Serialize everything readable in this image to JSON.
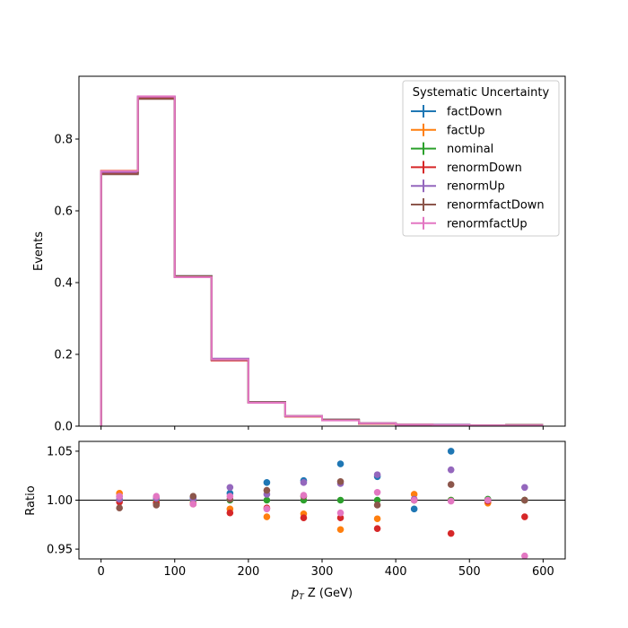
{
  "chart_data": [
    {
      "type": "step",
      "panel": "main",
      "ylabel": "Events",
      "xlim": [
        -30,
        630
      ],
      "ylim": [
        0,
        0.975
      ],
      "yticks": [
        0.0,
        0.2,
        0.4,
        0.6,
        0.8
      ],
      "ytick_labels": [
        "0.0",
        "0.2",
        "0.4",
        "0.6",
        "0.8"
      ],
      "xticks": [
        0,
        100,
        200,
        300,
        400,
        500,
        600
      ],
      "bin_edges": [
        0,
        50,
        100,
        150,
        200,
        250,
        300,
        350,
        400,
        450,
        500,
        550,
        600
      ],
      "legend": {
        "title": "Systematic Uncertainty",
        "placement": "top-right"
      },
      "series": [
        {
          "name": "factDown",
          "color": "#1f77b4",
          "values": [
            0.705,
            0.918,
            0.418,
            0.186,
            0.067,
            0.028,
            0.018,
            0.008,
            0.004,
            0.004,
            0.002,
            0.003
          ]
        },
        {
          "name": "factUp",
          "color": "#ff7f0e",
          "values": [
            0.712,
            0.914,
            0.416,
            0.184,
            0.066,
            0.027,
            0.017,
            0.007,
            0.004,
            0.003,
            0.002,
            0.003
          ]
        },
        {
          "name": "nominal",
          "color": "#2ca02c",
          "values": [
            0.708,
            0.916,
            0.417,
            0.185,
            0.066,
            0.028,
            0.018,
            0.008,
            0.004,
            0.003,
            0.002,
            0.003
          ]
        },
        {
          "name": "renormDown",
          "color": "#d62728",
          "values": [
            0.706,
            0.914,
            0.415,
            0.183,
            0.065,
            0.027,
            0.017,
            0.007,
            0.004,
            0.003,
            0.002,
            0.003
          ]
        },
        {
          "name": "renormUp",
          "color": "#9467bd",
          "values": [
            0.708,
            0.918,
            0.417,
            0.188,
            0.067,
            0.028,
            0.018,
            0.008,
            0.004,
            0.004,
            0.002,
            0.003
          ]
        },
        {
          "name": "renormfactDown",
          "color": "#8c564b",
          "values": [
            0.702,
            0.912,
            0.418,
            0.185,
            0.067,
            0.028,
            0.018,
            0.008,
            0.004,
            0.003,
            0.002,
            0.003
          ]
        },
        {
          "name": "renormfactUp",
          "color": "#e377c2",
          "values": [
            0.711,
            0.919,
            0.415,
            0.186,
            0.065,
            0.028,
            0.016,
            0.008,
            0.004,
            0.003,
            0.002,
            0.002
          ]
        }
      ]
    },
    {
      "type": "scatter",
      "panel": "ratio",
      "xlabel_prefix": "p",
      "xlabel_sub": "T",
      "xlabel_rest": " Z (GeV)",
      "ylabel": "Ratio",
      "xlim": [
        -30,
        630
      ],
      "ylim": [
        0.94,
        1.06
      ],
      "yticks": [
        0.95,
        1.0,
        1.05
      ],
      "ytick_labels": [
        "0.95",
        "1.00",
        "1.05"
      ],
      "xticks": [
        0,
        100,
        200,
        300,
        400,
        500,
        600
      ],
      "xtick_labels": [
        "0",
        "100",
        "200",
        "300",
        "400",
        "500",
        "600"
      ],
      "reference_line": 1.0,
      "x": [
        25,
        75,
        125,
        175,
        225,
        275,
        325,
        375,
        425,
        475,
        525,
        575
      ],
      "series": [
        {
          "name": "factDown",
          "color": "#1f77b4",
          "values": [
            1.004,
            0.997,
            1.002,
            1.007,
            1.018,
            1.02,
            1.037,
            1.024,
            0.991,
            1.05,
            0.998,
            1.0
          ]
        },
        {
          "name": "factUp",
          "color": "#ff7f0e",
          "values": [
            1.007,
            0.998,
            0.997,
            0.991,
            0.983,
            0.986,
            0.97,
            0.981,
            1.006,
            1.0,
            0.997,
            1.0
          ]
        },
        {
          "name": "nominal",
          "color": "#2ca02c",
          "values": [
            1.0,
            1.0,
            1.0,
            1.0,
            1.0,
            1.0,
            1.0,
            1.0,
            1.0,
            1.0,
            1.001,
            1.0
          ]
        },
        {
          "name": "renormDown",
          "color": "#d62728",
          "values": [
            0.998,
            0.997,
            0.996,
            0.987,
            0.992,
            0.982,
            0.982,
            0.971,
            1.0,
            0.966,
            0.999,
            0.983
          ]
        },
        {
          "name": "renormUp",
          "color": "#9467bd",
          "values": [
            1.001,
            1.002,
            1.001,
            1.013,
            1.006,
            1.018,
            1.017,
            1.026,
            1.001,
            1.031,
            1.0,
            1.013
          ]
        },
        {
          "name": "renormfactDown",
          "color": "#8c564b",
          "values": [
            0.992,
            0.995,
            1.004,
            1.001,
            1.01,
            1.004,
            1.019,
            0.995,
            1.0,
            1.016,
            1.0,
            1.0
          ]
        },
        {
          "name": "renormfactUp",
          "color": "#e377c2",
          "values": [
            1.004,
            1.004,
            0.996,
            1.004,
            0.991,
            1.005,
            0.987,
            1.008,
            1.0,
            0.999,
            1.0,
            0.943
          ]
        }
      ]
    }
  ]
}
